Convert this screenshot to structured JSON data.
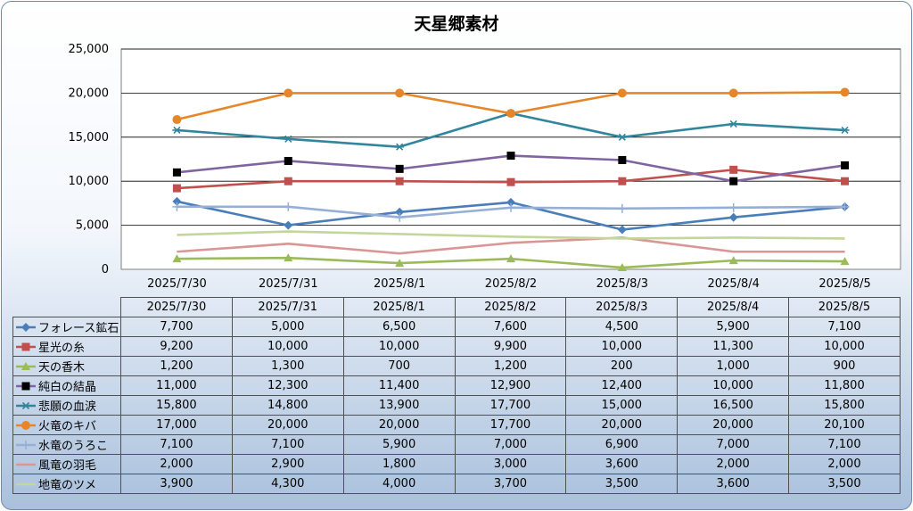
{
  "chart_data": {
    "type": "line",
    "title": "天星郷素材",
    "categories": [
      "2025/7/30",
      "2025/7/31",
      "2025/8/1",
      "2025/8/2",
      "2025/8/3",
      "2025/8/4",
      "2025/8/5"
    ],
    "ylim": [
      0,
      25000
    ],
    "yticks": [
      "0",
      "5,000",
      "10,000",
      "15,000",
      "20,000",
      "25,000"
    ],
    "grid": true,
    "legend_placement": "data table",
    "series": [
      {
        "name": "フォレース鉱石",
        "color": "#4a7ebb",
        "marker": "diamond",
        "values": [
          7700,
          5000,
          6500,
          7600,
          4500,
          5900,
          7100
        ],
        "labels": [
          "7,700",
          "5,000",
          "6,500",
          "7,600",
          "4,500",
          "5,900",
          "7,100"
        ]
      },
      {
        "name": "星光の糸",
        "color": "#c0504d",
        "marker": "square",
        "values": [
          9200,
          10000,
          10000,
          9900,
          10000,
          11300,
          10000
        ],
        "labels": [
          "9,200",
          "10,000",
          "10,000",
          "9,900",
          "10,000",
          "11,300",
          "10,000"
        ]
      },
      {
        "name": "天の香木",
        "color": "#9bbb59",
        "marker": "triangle",
        "values": [
          1200,
          1300,
          700,
          1200,
          200,
          1000,
          900
        ],
        "labels": [
          "1,200",
          "1,300",
          "700",
          "1,200",
          "200",
          "1,000",
          "900"
        ]
      },
      {
        "name": "純白の結晶",
        "color": "#8064a2",
        "marker": "square-black",
        "values": [
          11000,
          12300,
          11400,
          12900,
          12400,
          10000,
          11800
        ],
        "labels": [
          "11,000",
          "12,300",
          "11,400",
          "12,900",
          "12,400",
          "10,000",
          "11,800"
        ]
      },
      {
        "name": "悲願の血涙",
        "color": "#31859c",
        "marker": "star",
        "values": [
          15800,
          14800,
          13900,
          17700,
          15000,
          16500,
          15800
        ],
        "labels": [
          "15,800",
          "14,800",
          "13,900",
          "17,700",
          "15,000",
          "16,500",
          "15,800"
        ]
      },
      {
        "name": "火竜のキバ",
        "color": "#e6862a",
        "marker": "circle",
        "values": [
          17000,
          20000,
          20000,
          17700,
          20000,
          20000,
          20100
        ],
        "labels": [
          "17,000",
          "20,000",
          "20,000",
          "17,700",
          "20,000",
          "20,000",
          "20,100"
        ]
      },
      {
        "name": "水竜のうろこ",
        "color": "#95afd6",
        "marker": "plus",
        "values": [
          7100,
          7100,
          5900,
          7000,
          6900,
          7000,
          7100
        ],
        "labels": [
          "7,100",
          "7,100",
          "5,900",
          "7,000",
          "6,900",
          "7,000",
          "7,100"
        ]
      },
      {
        "name": "風竜の羽毛",
        "color": "#d99694",
        "marker": "none",
        "values": [
          2000,
          2900,
          1800,
          3000,
          3600,
          2000,
          2000
        ],
        "labels": [
          "2,000",
          "2,900",
          "1,800",
          "3,000",
          "3,600",
          "2,000",
          "2,000"
        ]
      },
      {
        "name": "地竜のツメ",
        "color": "#c3d69b",
        "marker": "none",
        "values": [
          3900,
          4300,
          4000,
          3700,
          3500,
          3600,
          3500
        ],
        "labels": [
          "3,900",
          "4,300",
          "4,000",
          "3,700",
          "3,500",
          "3,600",
          "3,500"
        ]
      }
    ]
  }
}
